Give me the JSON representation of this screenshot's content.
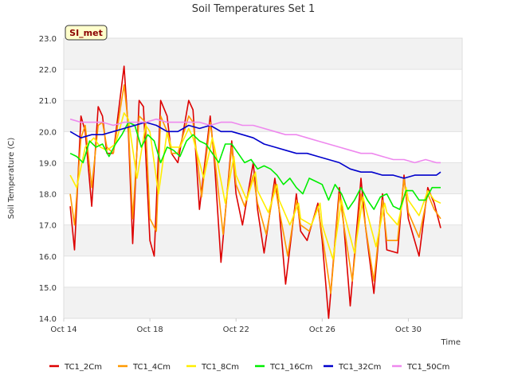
{
  "chart_data": {
    "type": "line",
    "title": "Soil Temperatures Set 1",
    "xlabel": "Time",
    "ylabel": "Soil Temperature (C)",
    "badge": "SI_met",
    "ylim": [
      14.0,
      23.0
    ],
    "xlim": [
      0,
      18.5
    ],
    "y_ticks": [
      14.0,
      15.0,
      16.0,
      17.0,
      18.0,
      19.0,
      20.0,
      21.0,
      22.0,
      23.0
    ],
    "y_tick_labels": [
      "14.0",
      "15.0",
      "16.0",
      "17.0",
      "18.0",
      "19.0",
      "20.0",
      "21.0",
      "22.0",
      "23.0"
    ],
    "x_ticks": [
      0,
      4,
      8,
      12,
      16
    ],
    "x_tick_labels": [
      "Oct 14",
      "Oct 18",
      "Oct 22",
      "Oct 26",
      "Oct 30"
    ],
    "grid": true,
    "legend_position": "bottom",
    "series": [
      {
        "name": "TC1_2Cm",
        "color": "#dd0000",
        "x": [
          0.3,
          0.5,
          0.8,
          1.0,
          1.3,
          1.6,
          1.8,
          2.0,
          2.3,
          2.8,
          3.0,
          3.2,
          3.5,
          3.7,
          4.0,
          4.2,
          4.5,
          4.8,
          5.0,
          5.3,
          5.8,
          6.0,
          6.3,
          6.8,
          7.0,
          7.3,
          7.8,
          8.0,
          8.3,
          8.8,
          9.0,
          9.3,
          9.8,
          10.0,
          10.3,
          10.8,
          11.0,
          11.3,
          11.8,
          12.0,
          12.3,
          12.8,
          13.0,
          13.3,
          13.8,
          14.0,
          14.4,
          14.8,
          15.0,
          15.5,
          15.8,
          16.0,
          16.5,
          16.9,
          17.2,
          17.5
        ],
        "y": [
          17.6,
          16.2,
          20.5,
          20.0,
          17.6,
          20.8,
          20.5,
          19.3,
          19.3,
          22.1,
          20.0,
          16.4,
          21.0,
          20.8,
          16.5,
          16.0,
          21.0,
          20.5,
          19.3,
          19.0,
          21.0,
          20.7,
          17.5,
          20.5,
          19.0,
          15.8,
          19.7,
          18.0,
          17.0,
          19.0,
          17.5,
          16.1,
          18.5,
          17.5,
          15.1,
          18.0,
          16.8,
          16.5,
          17.7,
          16.5,
          14.0,
          18.2,
          17.0,
          14.4,
          18.5,
          17.0,
          14.8,
          18.0,
          16.2,
          16.1,
          18.6,
          17.2,
          16.0,
          18.2,
          17.7,
          16.9
        ]
      },
      {
        "name": "TC1_4Cm",
        "color": "#ff9900",
        "x": [
          0.3,
          0.5,
          0.8,
          1.0,
          1.3,
          1.6,
          1.8,
          2.0,
          2.3,
          2.8,
          3.0,
          3.2,
          3.5,
          3.8,
          4.0,
          4.3,
          4.5,
          4.8,
          5.0,
          5.3,
          5.8,
          6.0,
          6.4,
          6.8,
          7.0,
          7.4,
          7.8,
          8.0,
          8.4,
          8.8,
          9.0,
          9.4,
          9.8,
          10.0,
          10.4,
          10.8,
          11.0,
          11.4,
          11.8,
          12.0,
          12.4,
          12.8,
          13.0,
          13.4,
          13.8,
          14.0,
          14.4,
          14.8,
          15.0,
          15.5,
          15.8,
          16.0,
          16.5,
          16.9,
          17.2,
          17.5
        ],
        "y": [
          18.0,
          17.0,
          19.8,
          20.2,
          18.2,
          20.2,
          20.3,
          19.5,
          19.3,
          21.5,
          20.2,
          17.2,
          20.5,
          20.3,
          17.2,
          16.8,
          20.5,
          20.0,
          19.3,
          19.3,
          20.5,
          20.3,
          17.9,
          20.3,
          19.2,
          16.7,
          19.5,
          18.3,
          17.6,
          18.6,
          17.7,
          16.7,
          18.3,
          17.5,
          16.0,
          17.8,
          17.0,
          16.8,
          17.6,
          16.7,
          14.8,
          18.0,
          17.0,
          15.2,
          18.0,
          17.0,
          15.2,
          17.8,
          16.5,
          16.5,
          18.5,
          17.4,
          16.6,
          18.0,
          17.5,
          17.2
        ]
      },
      {
        "name": "TC1_8Cm",
        "color": "#ffee00",
        "x": [
          0.3,
          0.6,
          1.0,
          1.4,
          1.7,
          2.0,
          2.4,
          2.8,
          3.0,
          3.4,
          3.8,
          4.0,
          4.4,
          4.8,
          5.0,
          5.4,
          5.8,
          6.0,
          6.5,
          6.9,
          7.0,
          7.5,
          7.9,
          8.0,
          8.5,
          8.9,
          9.0,
          9.5,
          9.9,
          10.0,
          10.5,
          10.9,
          11.0,
          11.5,
          11.9,
          12.0,
          12.5,
          12.9,
          13.0,
          13.5,
          13.9,
          14.0,
          14.5,
          14.9,
          15.0,
          15.5,
          15.9,
          16.0,
          16.5,
          16.9,
          17.2,
          17.5
        ],
        "y": [
          18.6,
          18.2,
          19.5,
          19.8,
          19.5,
          19.4,
          19.6,
          20.6,
          20.4,
          18.5,
          20.2,
          20.0,
          18.0,
          20.0,
          19.5,
          19.5,
          20.1,
          19.8,
          18.5,
          19.8,
          19.5,
          17.7,
          19.2,
          18.6,
          17.8,
          18.7,
          18.1,
          17.4,
          18.3,
          17.8,
          17.0,
          17.7,
          17.2,
          17.0,
          17.7,
          17.0,
          15.9,
          17.8,
          17.4,
          16.1,
          17.9,
          17.6,
          16.3,
          17.7,
          17.4,
          17.0,
          18.2,
          17.8,
          17.3,
          18.1,
          17.8,
          17.7
        ]
      },
      {
        "name": "TC1_16Cm",
        "color": "#00ee00",
        "x": [
          0.3,
          0.6,
          0.9,
          1.2,
          1.5,
          1.8,
          2.1,
          2.4,
          2.7,
          3.0,
          3.3,
          3.6,
          3.9,
          4.2,
          4.5,
          4.8,
          5.1,
          5.4,
          5.7,
          6.0,
          6.3,
          6.6,
          6.9,
          7.2,
          7.5,
          7.8,
          8.1,
          8.4,
          8.7,
          9.0,
          9.3,
          9.6,
          9.9,
          10.2,
          10.5,
          10.8,
          11.1,
          11.4,
          11.7,
          12.0,
          12.3,
          12.6,
          12.9,
          13.2,
          13.5,
          13.8,
          14.1,
          14.4,
          14.7,
          15.0,
          15.3,
          15.6,
          15.9,
          16.2,
          16.5,
          16.8,
          17.1,
          17.5
        ],
        "y": [
          19.3,
          19.2,
          19.0,
          19.7,
          19.5,
          19.6,
          19.2,
          19.6,
          19.9,
          20.3,
          20.2,
          19.5,
          19.9,
          19.7,
          19.0,
          19.5,
          19.4,
          19.2,
          19.7,
          19.9,
          19.7,
          19.6,
          19.3,
          19.0,
          19.6,
          19.6,
          19.3,
          19.0,
          19.1,
          18.8,
          18.9,
          18.8,
          18.6,
          18.3,
          18.5,
          18.2,
          18.0,
          18.5,
          18.4,
          18.3,
          17.8,
          18.3,
          18.0,
          17.5,
          17.8,
          18.2,
          17.8,
          17.5,
          17.9,
          18.0,
          17.6,
          17.5,
          18.1,
          18.1,
          17.8,
          17.8,
          18.2,
          18.2
        ]
      },
      {
        "name": "TC1_32Cm",
        "color": "#0000cc",
        "x": [
          0.3,
          0.8,
          1.3,
          1.8,
          2.3,
          2.8,
          3.3,
          3.8,
          4.3,
          4.8,
          5.3,
          5.8,
          6.3,
          6.8,
          7.3,
          7.8,
          8.3,
          8.8,
          9.3,
          9.8,
          10.3,
          10.8,
          11.3,
          11.8,
          12.3,
          12.8,
          13.3,
          13.8,
          14.3,
          14.8,
          15.3,
          15.8,
          16.3,
          16.8,
          17.3,
          17.5
        ],
        "y": [
          20.0,
          19.8,
          19.9,
          19.9,
          20.0,
          20.1,
          20.2,
          20.3,
          20.2,
          20.0,
          20.0,
          20.2,
          20.1,
          20.2,
          20.0,
          20.0,
          19.9,
          19.8,
          19.6,
          19.5,
          19.4,
          19.3,
          19.3,
          19.2,
          19.1,
          19.0,
          18.8,
          18.7,
          18.7,
          18.6,
          18.6,
          18.5,
          18.6,
          18.6,
          18.6,
          18.7
        ]
      },
      {
        "name": "TC1_50Cm",
        "color": "#ee88ee",
        "x": [
          0.3,
          0.8,
          1.3,
          1.8,
          2.3,
          2.8,
          3.3,
          3.8,
          4.3,
          4.8,
          5.3,
          5.8,
          6.3,
          6.8,
          7.3,
          7.8,
          8.3,
          8.8,
          9.3,
          9.8,
          10.3,
          10.8,
          11.3,
          11.8,
          12.3,
          12.8,
          13.3,
          13.8,
          14.3,
          14.8,
          15.3,
          15.8,
          16.3,
          16.8,
          17.3,
          17.5
        ],
        "y": [
          20.4,
          20.3,
          20.3,
          20.3,
          20.2,
          20.3,
          20.3,
          20.3,
          20.4,
          20.3,
          20.3,
          20.3,
          20.3,
          20.2,
          20.3,
          20.3,
          20.2,
          20.2,
          20.1,
          20.0,
          19.9,
          19.9,
          19.8,
          19.7,
          19.6,
          19.5,
          19.4,
          19.3,
          19.3,
          19.2,
          19.1,
          19.1,
          19.0,
          19.1,
          19.0,
          19.0
        ]
      }
    ]
  }
}
